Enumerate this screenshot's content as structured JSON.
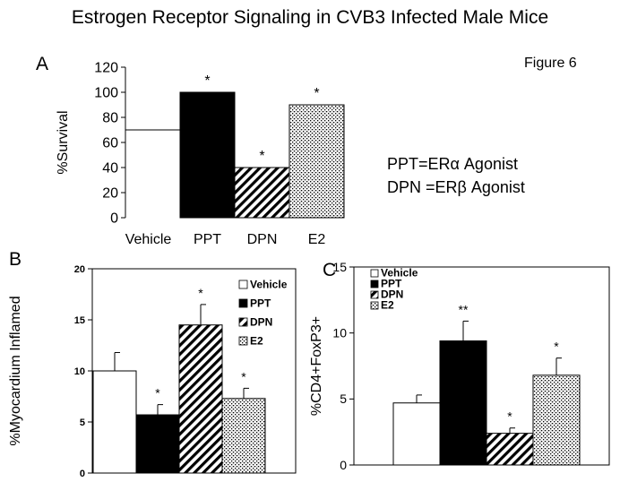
{
  "figure": {
    "title": "Estrogen Receptor Signaling in CVB3 Infected Male Mice",
    "figure_label": "Figure 6",
    "notes": [
      "PPT=ERα Agonist",
      "DPN =ERβ Agonist"
    ]
  },
  "chart_data": [
    {
      "panel": "A",
      "type": "bar",
      "title": "",
      "xlabel": "",
      "ylabel": "%Survival",
      "ylim": [
        0,
        120
      ],
      "yticks": [
        0,
        20,
        40,
        60,
        80,
        100,
        120
      ],
      "categories": [
        "Vehicle",
        "PPT",
        "DPN",
        "E2"
      ],
      "values": [
        70,
        100,
        40,
        90
      ],
      "errors": [
        null,
        null,
        null,
        null
      ],
      "significance": [
        "",
        "*",
        "*",
        "*"
      ],
      "fills": [
        "white",
        "black",
        "diagonal",
        "dotted"
      ],
      "legend": null
    },
    {
      "panel": "B",
      "type": "bar",
      "title": "",
      "xlabel": "",
      "ylabel": "%Myocardium Inflamed",
      "ylim": [
        0,
        20
      ],
      "yticks": [
        0,
        5,
        10,
        15,
        20
      ],
      "categories": [
        "Vehicle",
        "PPT",
        "DPN",
        "E2"
      ],
      "values": [
        10,
        5.7,
        14.5,
        7.3
      ],
      "errors": [
        1.8,
        1.0,
        2.0,
        1.0
      ],
      "significance": [
        "",
        "*",
        "*",
        "*"
      ],
      "fills": [
        "white",
        "black",
        "diagonal",
        "dotted"
      ],
      "legend": {
        "position": "top-right",
        "entries": [
          "Vehicle",
          "PPT",
          "DPN",
          "E2"
        ]
      }
    },
    {
      "panel": "C",
      "type": "bar",
      "title": "",
      "xlabel": "",
      "ylabel": "%CD4+FoxP3+",
      "ylim": [
        0,
        15
      ],
      "yticks": [
        0,
        5,
        10,
        15
      ],
      "categories": [
        "Vehicle",
        "PPT",
        "DPN",
        "E2"
      ],
      "values": [
        4.7,
        9.4,
        2.4,
        6.8
      ],
      "errors": [
        0.6,
        1.5,
        0.4,
        1.3
      ],
      "significance": [
        "",
        "**",
        "*",
        "*"
      ],
      "fills": [
        "white",
        "black",
        "diagonal",
        "dotted"
      ],
      "legend": {
        "position": "top-left",
        "entries": [
          "Vehicle",
          "PPT",
          "DPN",
          "E2"
        ]
      }
    }
  ]
}
